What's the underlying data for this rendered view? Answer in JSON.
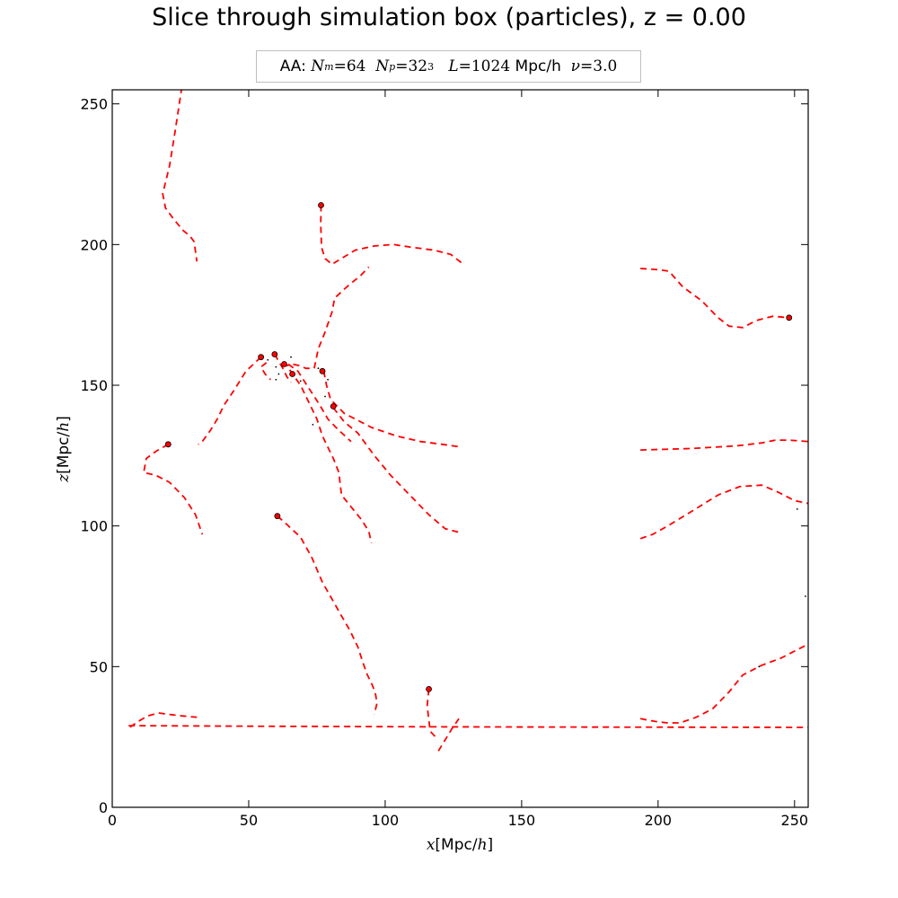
{
  "chart_data": {
    "type": "scatter",
    "title": "Slice through simulation box (particles), z = 0.00",
    "info_box": {
      "prefix": "AA:",
      "nm_label": "N",
      "nm_sub": "m",
      "nm_value": "=64",
      "np_label": "N",
      "np_sub": "p",
      "np_value": "=32",
      "np_sup": "3",
      "l_label": "L",
      "l_value": "=1024",
      "l_unit": "Mpc/h",
      "nu_label": "ν",
      "nu_value": "=3.0"
    },
    "xlabel": {
      "var": "x",
      "unit_open": "[Mpc/",
      "unit_h": "h",
      "unit_close": "]"
    },
    "ylabel": {
      "var": "z",
      "unit_open": "[Mpc/",
      "unit_h": "h",
      "unit_close": "]"
    },
    "xlim": [
      0,
      255
    ],
    "ylim": [
      0,
      255
    ],
    "xticks": [
      0,
      50,
      100,
      150,
      200,
      250
    ],
    "yticks": [
      0,
      50,
      100,
      150,
      200,
      250
    ],
    "grid": false,
    "line_color": "#ff0000",
    "marker_color": "#ff0000",
    "dot_color": "#000000",
    "trajectories": [
      [
        [
          25.5,
          256
        ],
        [
          23,
          240
        ],
        [
          21,
          228
        ],
        [
          18.5,
          218
        ],
        [
          19.5,
          213
        ],
        [
          22.5,
          209
        ],
        [
          26,
          205
        ],
        [
          28.5,
          203
        ],
        [
          30,
          201
        ],
        [
          31,
          194
        ]
      ],
      [
        [
          76.5,
          214
        ],
        [
          76.4,
          207
        ],
        [
          76.7,
          199
        ],
        [
          78,
          195
        ],
        [
          80.5,
          193
        ],
        [
          83,
          194.5
        ],
        [
          89,
          198
        ],
        [
          96,
          199.5
        ],
        [
          103,
          200
        ],
        [
          110,
          199
        ],
        [
          118,
          198
        ],
        [
          124,
          196.5
        ],
        [
          128,
          193.5
        ]
      ],
      [
        [
          56.5,
          158
        ],
        [
          54.5,
          156.5
        ],
        [
          56,
          154
        ],
        [
          58,
          152
        ]
      ],
      [
        [
          59.5,
          161
        ],
        [
          61,
          158.5
        ],
        [
          62.5,
          156
        ],
        [
          64,
          153
        ],
        [
          65.5,
          151
        ]
      ],
      [
        [
          62.5,
          157.5
        ],
        [
          64,
          157
        ],
        [
          66,
          157.5
        ],
        [
          68.5,
          157
        ],
        [
          71,
          156
        ],
        [
          73,
          156
        ]
      ],
      [
        [
          74,
          156
        ],
        [
          75.5,
          163
        ],
        [
          78,
          169
        ],
        [
          80.5,
          176
        ],
        [
          81.5,
          181
        ],
        [
          86,
          185
        ],
        [
          91,
          189
        ],
        [
          94,
          192
        ]
      ],
      [
        [
          54.5,
          160
        ],
        [
          49,
          155
        ],
        [
          44.5,
          148
        ],
        [
          41,
          143
        ],
        [
          38.5,
          138
        ],
        [
          36,
          134
        ],
        [
          33,
          130
        ],
        [
          31.5,
          129
        ]
      ],
      [
        [
          64.5,
          157.5
        ],
        [
          68,
          155
        ],
        [
          72,
          149
        ],
        [
          76,
          143
        ],
        [
          79,
          138
        ],
        [
          83,
          134
        ],
        [
          87.5,
          130
        ]
      ],
      [
        [
          65,
          155.5
        ],
        [
          69,
          150
        ],
        [
          72,
          144
        ],
        [
          75,
          138
        ],
        [
          77,
          132
        ],
        [
          79.5,
          127
        ],
        [
          81,
          124
        ],
        [
          83,
          119
        ],
        [
          84,
          111
        ],
        [
          86.5,
          108
        ],
        [
          89,
          105
        ],
        [
          91.5,
          102
        ],
        [
          94,
          98
        ],
        [
          95,
          94
        ]
      ],
      [
        [
          77.5,
          155
        ],
        [
          78.5,
          150
        ],
        [
          80,
          145
        ],
        [
          85,
          140
        ],
        [
          95,
          135
        ],
        [
          104,
          132
        ],
        [
          113,
          130
        ],
        [
          121,
          129
        ],
        [
          128,
          128
        ]
      ],
      [
        [
          81,
          142
        ],
        [
          85,
          137
        ],
        [
          90,
          133
        ],
        [
          96,
          125
        ],
        [
          102,
          118
        ],
        [
          110,
          110
        ],
        [
          116,
          104
        ],
        [
          122,
          99
        ],
        [
          128,
          97.5
        ]
      ],
      [
        [
          20.5,
          129
        ],
        [
          16,
          126.5
        ],
        [
          12.5,
          124
        ],
        [
          11.5,
          119
        ],
        [
          16,
          118
        ],
        [
          21,
          115.5
        ],
        [
          26.5,
          110
        ],
        [
          30.5,
          104
        ],
        [
          33,
          97
        ]
      ],
      [
        [
          60.5,
          103.5
        ],
        [
          64,
          100.5
        ],
        [
          69,
          96
        ],
        [
          73,
          89
        ],
        [
          77,
          80
        ],
        [
          80.5,
          74
        ],
        [
          84,
          68
        ],
        [
          87,
          63
        ],
        [
          90,
          57
        ],
        [
          92,
          51
        ],
        [
          93.5,
          47
        ],
        [
          95.5,
          43
        ],
        [
          96.5,
          40
        ],
        [
          97,
          37
        ],
        [
          96,
          33
        ]
      ],
      [
        [
          6.5,
          28.5
        ],
        [
          9.5,
          30.5
        ],
        [
          13,
          32.5
        ],
        [
          17,
          33.5
        ],
        [
          21,
          33
        ],
        [
          25.5,
          32.5
        ],
        [
          31,
          32
        ]
      ],
      [
        [
          6,
          29
        ],
        [
          60,
          28.8
        ],
        [
          120,
          28.6
        ],
        [
          180,
          28.5
        ],
        [
          255,
          28.4
        ]
      ],
      [
        [
          116,
          42
        ],
        [
          115.4,
          36
        ],
        [
          116.5,
          27
        ],
        [
          118.5,
          25
        ]
      ],
      [
        [
          119.5,
          20
        ],
        [
          122,
          24
        ],
        [
          124.5,
          28
        ],
        [
          127,
          31.5
        ]
      ],
      [
        [
          193.5,
          31.5
        ],
        [
          199,
          30.5
        ],
        [
          203.5,
          30
        ],
        [
          208,
          30
        ],
        [
          214,
          32
        ],
        [
          220,
          35
        ],
        [
          226,
          41
        ],
        [
          231,
          47
        ],
        [
          238,
          50.5
        ],
        [
          245,
          53
        ],
        [
          250,
          55.5
        ],
        [
          255,
          58
        ]
      ],
      [
        [
          193.5,
          95.5
        ],
        [
          198,
          97
        ],
        [
          203.5,
          100
        ],
        [
          212,
          105
        ],
        [
          222,
          111
        ],
        [
          230,
          114
        ],
        [
          238,
          114.5
        ],
        [
          244,
          112
        ],
        [
          250,
          109
        ],
        [
          255,
          108
        ]
      ],
      [
        [
          193.5,
          127
        ],
        [
          212,
          127.5
        ],
        [
          229,
          128.5
        ],
        [
          238,
          129.5
        ],
        [
          243,
          130.5
        ],
        [
          248,
          130.5
        ],
        [
          255,
          130
        ]
      ],
      [
        [
          193.5,
          191.5
        ],
        [
          201,
          191
        ],
        [
          204,
          190.5
        ],
        [
          209,
          185
        ],
        [
          216,
          180
        ],
        [
          222,
          174
        ],
        [
          226,
          171
        ],
        [
          231,
          170.5
        ],
        [
          236,
          173
        ],
        [
          242,
          174.5
        ],
        [
          248,
          174
        ]
      ]
    ],
    "particles": [
      [
        76.5,
        214
      ],
      [
        248,
        174
      ],
      [
        54.5,
        160
      ],
      [
        59.5,
        161
      ],
      [
        63,
        157.5
      ],
      [
        77,
        155
      ],
      [
        66,
        154
      ],
      [
        81,
        142.5
      ],
      [
        20.5,
        129
      ],
      [
        60.5,
        103.5
      ],
      [
        116,
        42
      ]
    ],
    "small_dots": [
      [
        57,
        159
      ],
      [
        60,
        156.5
      ],
      [
        65.5,
        160
      ],
      [
        61,
        154
      ],
      [
        60,
        152
      ],
      [
        69,
        151.5
      ],
      [
        75.5,
        156
      ],
      [
        79,
        152
      ],
      [
        78,
        146
      ],
      [
        73.5,
        136
      ],
      [
        251,
        106
      ],
      [
        254,
        75
      ],
      [
        237,
        50
      ]
    ]
  }
}
